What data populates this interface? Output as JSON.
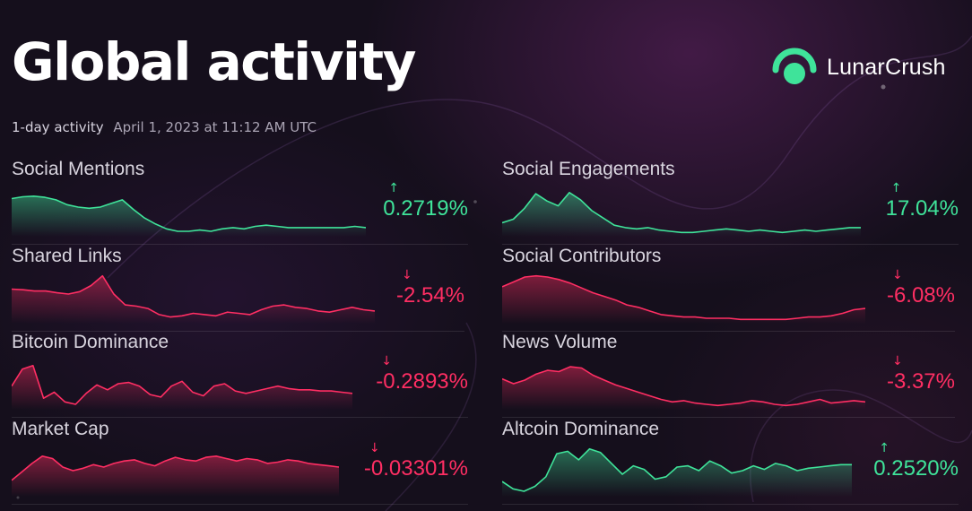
{
  "header": {
    "title": "Global activity",
    "period": "1-day activity",
    "timestamp": "April 1, 2023 at 11:12 AM UTC"
  },
  "brand": {
    "name": "LunarCrush",
    "logo_icon": "lunarcrush-logo-icon",
    "accent_color": "#3fe39a"
  },
  "colors": {
    "up": "#3fe39a",
    "down": "#ff2e63",
    "background": "#150f1c"
  },
  "metrics": [
    {
      "label": "Social Mentions",
      "change": "0.2719%",
      "direction": "up",
      "arrow": "↑",
      "trend": [
        60,
        63,
        64,
        62,
        58,
        50,
        46,
        44,
        46,
        52,
        58,
        42,
        28,
        18,
        10,
        6,
        6,
        8,
        6,
        10,
        12,
        10,
        14,
        16,
        14,
        12,
        12,
        12,
        12,
        12,
        12,
        14,
        12
      ]
    },
    {
      "label": "Social Engagements",
      "change": "17.04%",
      "direction": "up",
      "arrow": "↑",
      "trend": [
        20,
        26,
        44,
        68,
        56,
        48,
        70,
        58,
        40,
        28,
        16,
        12,
        10,
        12,
        8,
        6,
        4,
        4,
        6,
        8,
        10,
        8,
        6,
        8,
        6,
        4,
        6,
        8,
        6,
        8,
        10,
        12,
        12
      ]
    },
    {
      "label": "Shared Links",
      "change": "-2.54%",
      "direction": "down",
      "arrow": "↓",
      "trend": [
        54,
        53,
        51,
        51,
        48,
        46,
        50,
        60,
        76,
        46,
        28,
        26,
        22,
        12,
        8,
        10,
        14,
        12,
        10,
        16,
        14,
        12,
        20,
        26,
        28,
        24,
        22,
        18,
        16,
        20,
        24,
        20,
        18
      ]
    },
    {
      "label": "Social Contributors",
      "change": "-6.08%",
      "direction": "down",
      "arrow": "↓",
      "trend": [
        58,
        66,
        74,
        76,
        74,
        70,
        64,
        56,
        48,
        42,
        36,
        28,
        24,
        18,
        12,
        10,
        8,
        8,
        6,
        6,
        6,
        4,
        4,
        4,
        4,
        4,
        6,
        8,
        8,
        10,
        14,
        20,
        22
      ]
    },
    {
      "label": "Bitcoin Dominance",
      "change": "-0.2893%",
      "direction": "down",
      "arrow": "↓",
      "trend": [
        36,
        64,
        70,
        16,
        26,
        10,
        6,
        24,
        38,
        30,
        40,
        42,
        36,
        22,
        18,
        36,
        44,
        26,
        20,
        36,
        40,
        28,
        24,
        28,
        32,
        36,
        32,
        30,
        30,
        28,
        28,
        26,
        24
      ]
    },
    {
      "label": "News Volume",
      "change": "-3.37%",
      "direction": "down",
      "arrow": "↓",
      "trend": [
        48,
        40,
        46,
        56,
        62,
        60,
        68,
        66,
        54,
        46,
        38,
        32,
        26,
        20,
        14,
        10,
        12,
        8,
        6,
        4,
        6,
        8,
        12,
        10,
        6,
        4,
        6,
        10,
        14,
        8,
        10,
        12,
        10
      ]
    },
    {
      "label": "Market Cap",
      "change": "-0.03301%",
      "direction": "down",
      "arrow": "↓",
      "trend": [
        24,
        38,
        52,
        64,
        60,
        46,
        40,
        44,
        50,
        46,
        52,
        56,
        58,
        52,
        48,
        56,
        62,
        58,
        56,
        62,
        64,
        60,
        56,
        60,
        58,
        52,
        54,
        58,
        56,
        52,
        50,
        48,
        46
      ]
    },
    {
      "label": "Altcoin Dominance",
      "change": "0.2520%",
      "direction": "up",
      "arrow": "↑",
      "trend": [
        22,
        10,
        6,
        14,
        30,
        68,
        72,
        58,
        76,
        70,
        52,
        34,
        48,
        42,
        26,
        30,
        46,
        48,
        40,
        56,
        48,
        36,
        40,
        48,
        42,
        52,
        48,
        40,
        44,
        46,
        48,
        50,
        50
      ]
    }
  ]
}
